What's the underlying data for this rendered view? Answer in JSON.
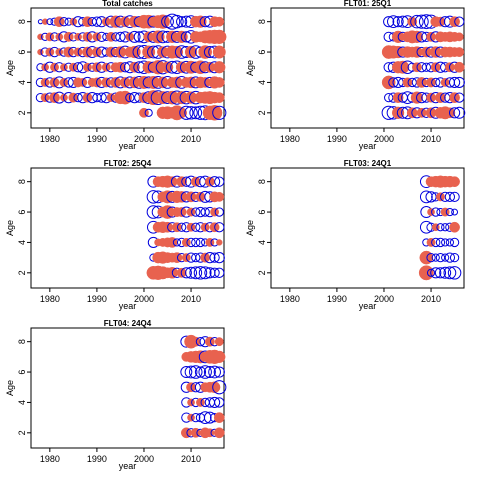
{
  "colors": {
    "negative": "#e8624f",
    "positive": "#0000dd",
    "frame": "#000000"
  },
  "chart_data": [
    {
      "type": "scatter",
      "subtype": "bubble-residuals",
      "title": "Total catches",
      "xlabel": "year",
      "ylabel": "Age",
      "xlim": [
        1976,
        2017
      ],
      "ylim": [
        1,
        8.9
      ],
      "xticks": [
        1980,
        1990,
        2000,
        2010
      ],
      "yticks": [
        2,
        4,
        6,
        8
      ],
      "x_range": [
        1978,
        2016
      ],
      "ages": [
        2,
        3,
        4,
        5,
        6,
        7,
        8
      ],
      "residuals": {
        "2": {
          "2000": -0.5,
          "2001": 0.3,
          "2004": -0.8,
          "2005": -0.9,
          "2006": -0.7,
          "2007": -1.2,
          "2008": -0.6,
          "2009": 1.0,
          "2010": 0.9,
          "2011": 0.8,
          "2012": 1.0,
          "2013": 1.1,
          "2014": -1.1,
          "2015": -1.3,
          "2016": 1.0
        },
        "3": {
          "1978": 0.4,
          "1979": -0.4,
          "1980": 0.5,
          "1981": -0.6,
          "1982": 0.7,
          "1983": -0.3,
          "1984": 0.6,
          "1985": -0.5,
          "1986": 0.4,
          "1987": 0.6,
          "1988": -0.5,
          "1989": 0.6,
          "1990": 0.4,
          "1991": 0.5,
          "1992": 0.6,
          "1993": -0.4,
          "1994": 0.5,
          "1995": -0.9,
          "1996": -1.0,
          "1997": 0.4,
          "1998": 0.6,
          "1999": 0.5,
          "2000": -0.6,
          "2001": 0.8,
          "2002": -1.2,
          "2003": 1.1,
          "2004": -0.9,
          "2005": 0.8,
          "2006": -1.0,
          "2007": 1.0,
          "2008": -0.9,
          "2009": 0.9,
          "2010": -0.8,
          "2011": 0.9,
          "2012": -0.7,
          "2013": -0.8,
          "2014": -0.9,
          "2015": -0.7,
          "2016": -0.6
        },
        "4": {
          "1978": 0.4,
          "1979": -0.4,
          "1980": 0.5,
          "1981": -0.5,
          "1982": 0.7,
          "1983": -0.4,
          "1984": 0.5,
          "1985": 0.6,
          "1986": -0.5,
          "1987": -0.4,
          "1988": 0.6,
          "1989": -0.4,
          "1990": -0.5,
          "1991": 0.6,
          "1992": -0.5,
          "1993": 0.5,
          "1994": -0.6,
          "1995": 0.7,
          "1996": -0.6,
          "1997": 0.7,
          "1998": -0.7,
          "1999": 0.8,
          "2000": -0.9,
          "2001": 0.7,
          "2002": -0.9,
          "2003": 0.8,
          "2004": -0.7,
          "2005": 0.8,
          "2006": -0.6,
          "2007": -0.7,
          "2008": 0.8,
          "2009": -0.6,
          "2010": -0.7,
          "2011": 0.7,
          "2012": -0.7,
          "2013": -0.6,
          "2014": 0.6,
          "2015": -0.8,
          "2016": -0.6
        },
        "5": {
          "1978": 0.3,
          "1979": -0.3,
          "1980": 0.6,
          "1981": -0.4,
          "1982": 0.5,
          "1983": -0.3,
          "1984": 0.4,
          "1985": -0.4,
          "1986": 0.5,
          "1987": 0.7,
          "1988": -0.4,
          "1989": 0.4,
          "1990": -0.5,
          "1991": 0.6,
          "1992": -0.4,
          "1993": 0.5,
          "1994": -0.5,
          "1995": -0.6,
          "1996": 0.5,
          "1997": 0.7,
          "1998": -0.6,
          "1999": 0.7,
          "2000": 0.9,
          "2001": -0.8,
          "2002": 0.6,
          "2003": -1.1,
          "2004": 1.0,
          "2005": -0.7,
          "2006": 0.8,
          "2007": 0.9,
          "2008": -0.7,
          "2009": 0.8,
          "2010": -0.9,
          "2011": 0.6,
          "2012": -1.0,
          "2013": 0.7,
          "2014": -0.6,
          "2015": 0.7,
          "2016": -0.8
        },
        "6": {
          "1978": -0.2,
          "1979": 0.4,
          "1980": -0.4,
          "1981": 0.5,
          "1982": -0.3,
          "1983": 0.4,
          "1984": -0.6,
          "1985": 0.5,
          "1986": -0.4,
          "1987": 0.5,
          "1988": -0.6,
          "1989": 0.7,
          "1990": -0.5,
          "1991": 0.6,
          "1992": 0.4,
          "1993": -0.6,
          "1994": 0.5,
          "1995": -0.7,
          "1996": 0.8,
          "1997": -0.6,
          "1998": -0.8,
          "1999": 0.9,
          "2000": 1.0,
          "2001": -0.9,
          "2002": 0.8,
          "2003": 0.9,
          "2004": -0.7,
          "2005": 0.8,
          "2006": -0.9,
          "2007": -0.8,
          "2008": 0.9,
          "2009": 0.7,
          "2010": -0.8,
          "2011": 0.9,
          "2012": 0.6,
          "2013": -1.0,
          "2014": 0.7,
          "2015": 0.8,
          "2016": -0.9
        },
        "7": {
          "1978": -0.2,
          "1979": 0.3,
          "1980": -0.4,
          "1981": 0.4,
          "1982": -0.3,
          "1983": 0.6,
          "1984": -0.5,
          "1985": 0.4,
          "1986": -0.3,
          "1987": 0.4,
          "1988": -0.5,
          "1989": 0.6,
          "1990": -0.4,
          "1991": 0.5,
          "1992": 0.3,
          "1993": -0.5,
          "1994": 0.4,
          "1995": 0.5,
          "1996": 0.6,
          "1997": -0.4,
          "1998": 0.7,
          "1999": 0.6,
          "2000": 0.8,
          "2001": -0.6,
          "2002": 0.7,
          "2003": -0.9,
          "2004": 0.8,
          "2005": 0.7,
          "2006": -0.8,
          "2007": 0.7,
          "2008": -0.8,
          "2009": 0.6,
          "2010": 0.9,
          "2011": -0.7,
          "2012": -0.6,
          "2013": -0.9,
          "2014": -1.0,
          "2015": -1.1,
          "2016": -1.1
        },
        "8": {
          "1978": 0.1,
          "1979": -0.2,
          "1980": 0.2,
          "1981": 0.3,
          "1982": -0.6,
          "1983": 0.4,
          "1984": 0.3,
          "1985": -0.3,
          "1986": 0.6,
          "1987": 0.4,
          "1988": -0.6,
          "1989": 0.4,
          "1990": 0.5,
          "1991": 0.6,
          "1992": -0.4,
          "1993": 0.7,
          "1994": -0.8,
          "1995": 0.7,
          "1996": -0.6,
          "1997": 0.8,
          "1998": -0.7,
          "1999": 0.6,
          "2000": -1.0,
          "2001": -1.0,
          "2002": 0.7,
          "2003": -0.9,
          "2004": -1.1,
          "2005": 0.8,
          "2006": 1.3,
          "2007": 0.9,
          "2008": 0.6,
          "2009": 0.7,
          "2010": 0.8,
          "2011": -0.7,
          "2012": -0.8,
          "2013": 0.6,
          "2014": 0.7,
          "2015": -0.6,
          "2016": -0.5
        }
      }
    },
    {
      "type": "scatter",
      "subtype": "bubble-residuals",
      "title": "FLT01: 25Q1",
      "xlabel": "year",
      "ylabel": "Age",
      "xlim": [
        1976,
        2017
      ],
      "ylim": [
        1,
        8.9
      ],
      "xticks": [
        1980,
        1990,
        2000,
        2010
      ],
      "yticks": [
        2,
        4,
        6,
        8
      ],
      "x_range": [
        2001,
        2016
      ],
      "ages": [
        2,
        3,
        4,
        5,
        6,
        7,
        8
      ],
      "residuals": {
        "2": {
          "2001": 1.0,
          "2002": 0.9,
          "2003": -0.8,
          "2004": 0.7,
          "2005": 0.8,
          "2006": -0.6,
          "2007": 0.6,
          "2008": -0.5,
          "2009": 0.5,
          "2010": -0.6,
          "2011": 0.7,
          "2012": -0.7,
          "2013": -0.9,
          "2014": -0.6,
          "2015": 0.6,
          "2016": 0.7
        },
        "3": {
          "2001": 0.4,
          "2002": 0.5,
          "2003": -0.6,
          "2004": 0.5,
          "2005": 0.8,
          "2006": 0.5,
          "2007": -0.8,
          "2008": 0.6,
          "2009": 0.5,
          "2010": -0.5,
          "2011": 0.6,
          "2012": -0.6,
          "2013": 0.5,
          "2014": 0.6,
          "2015": -0.6,
          "2016": 0.5
        },
        "4": {
          "2001": -1.0,
          "2002": 0.5,
          "2003": 0.6,
          "2004": 0.4,
          "2005": -0.5,
          "2006": 0.4,
          "2007": 0.5,
          "2008": -0.6,
          "2009": 0.4,
          "2010": -0.5,
          "2011": 0.4,
          "2012": 0.5,
          "2013": -0.4,
          "2014": 0.5,
          "2015": 0.6,
          "2016": 0.6
        },
        "5": {
          "2001": 0.5,
          "2002": 0.6,
          "2003": -0.8,
          "2004": -0.9,
          "2005": 0.9,
          "2006": 0.4,
          "2007": -0.5,
          "2008": 0.5,
          "2009": 0.4,
          "2010": 0.5,
          "2011": -0.5,
          "2012": 0.6,
          "2013": 0.5,
          "2014": -0.5,
          "2015": 0.6,
          "2016": -0.6
        },
        "6": {
          "2001": -1.0,
          "2002": -0.9,
          "2003": -0.8,
          "2004": 0.6,
          "2005": -0.7,
          "2006": -0.6,
          "2007": -0.7,
          "2008": 0.5,
          "2009": -0.6,
          "2010": 0.6,
          "2011": -0.7,
          "2012": 0.6,
          "2013": -0.6,
          "2014": -0.6,
          "2015": -0.5,
          "2016": -0.5
        },
        "7": {
          "2001": 0.5,
          "2002": 0.4,
          "2003": -0.8,
          "2004": 0.5,
          "2005": -0.6,
          "2006": -0.9,
          "2007": -0.8,
          "2008": 0.6,
          "2009": 0.5,
          "2010": -0.5,
          "2011": 0.6,
          "2012": -0.6,
          "2013": -0.5,
          "2014": -0.6,
          "2015": -0.5,
          "2016": -0.4
        },
        "8": {
          "2001": 0.6,
          "2002": 0.8,
          "2003": 0.6,
          "2004": 0.7,
          "2005": 0.8,
          "2006": -0.5,
          "2007": 0.9,
          "2008": 1.0,
          "2009": 1.1,
          "2010": 1.0,
          "2011": -0.6,
          "2012": -0.5,
          "2013": 0.6,
          "2014": 0.7,
          "2015": -0.6,
          "2016": 0.5
        }
      }
    },
    {
      "type": "scatter",
      "subtype": "bubble-residuals",
      "title": "FLT02: 25Q4",
      "xlabel": "year",
      "ylabel": "Age",
      "xlim": [
        1976,
        2017
      ],
      "ylim": [
        1,
        8.9
      ],
      "xticks": [
        1980,
        1990,
        2000,
        2010
      ],
      "yticks": [
        2,
        4,
        6,
        8
      ],
      "x_range": [
        2002,
        2016
      ],
      "ages": [
        2,
        3,
        4,
        5,
        6,
        7,
        8
      ],
      "residuals": {
        "2": {
          "2002": -1.0,
          "2003": -1.1,
          "2004": -0.9,
          "2005": -0.6,
          "2006": -0.7,
          "2007": 0.5,
          "2008": -0.5,
          "2009": 0.6,
          "2010": 0.7,
          "2011": 0.8,
          "2012": 0.9,
          "2013": 0.8,
          "2014": 0.6,
          "2015": 0.5,
          "2016": 0.5
        },
        "3": {
          "2002": 0.3,
          "2003": -0.7,
          "2004": -0.8,
          "2005": -0.6,
          "2006": -0.5,
          "2007": -0.6,
          "2008": 0.4,
          "2009": -0.4,
          "2010": 0.5,
          "2011": 0.4,
          "2012": 0.5,
          "2013": -0.5,
          "2014": 0.6,
          "2015": 0.5,
          "2016": 0.6
        },
        "4": {
          "2002": 0.6,
          "2003": -0.3,
          "2004": -0.4,
          "2005": -0.5,
          "2006": -0.6,
          "2007": 0.3,
          "2008": 0.4,
          "2009": -0.4,
          "2010": 0.4,
          "2011": 0.4,
          "2012": 0.4,
          "2013": 0.3,
          "2014": -0.4,
          "2015": 0.3,
          "2016": -0.2
        },
        "5": {
          "2002": 0.8,
          "2003": -0.6,
          "2004": -0.7,
          "2005": -0.6,
          "2006": 0.5,
          "2007": -0.5,
          "2008": 0.4,
          "2009": 0.5,
          "2010": -0.4,
          "2011": 0.4,
          "2012": 0.5,
          "2013": -0.4,
          "2014": 0.5,
          "2015": -0.5,
          "2016": 0.5
        },
        "6": {
          "2002": 0.9,
          "2003": 0.8,
          "2004": -0.6,
          "2005": -1.0,
          "2006": 0.6,
          "2007": -0.5,
          "2008": -0.5,
          "2009": 0.6,
          "2010": -0.4,
          "2011": 0.4,
          "2012": 0.5,
          "2013": 0.4,
          "2014": 0.5,
          "2015": -0.4,
          "2016": 0.4
        },
        "7": {
          "2002": 0.9,
          "2003": 0.8,
          "2004": -0.6,
          "2005": -0.9,
          "2006": 0.7,
          "2007": -0.8,
          "2008": -0.7,
          "2009": 0.6,
          "2010": -0.6,
          "2011": 0.5,
          "2012": -0.5,
          "2013": 0.7,
          "2014": 0.6,
          "2015": -0.6,
          "2016": -0.5
        },
        "8": {
          "2002": 0.7,
          "2003": -0.6,
          "2004": -0.7,
          "2005": -0.8,
          "2006": -0.6,
          "2007": 0.7,
          "2008": -0.6,
          "2009": 0.5,
          "2010": 0.7,
          "2011": -0.5,
          "2012": 0.6,
          "2013": 0.7,
          "2014": -0.5,
          "2015": 0.6,
          "2016": 0.5
        }
      }
    },
    {
      "type": "scatter",
      "subtype": "bubble-residuals",
      "title": "FLT03: 24Q1",
      "xlabel": "year",
      "ylabel": "Age",
      "xlim": [
        1976,
        2017
      ],
      "ylim": [
        1,
        8.9
      ],
      "xticks": [
        1980,
        1990,
        2000,
        2010
      ],
      "yticks": [
        2,
        4,
        6,
        8
      ],
      "x_range": [
        2009,
        2015
      ],
      "ages": [
        2,
        3,
        4,
        5,
        6,
        7,
        8
      ],
      "residuals": {
        "2": {
          "2009": -1.2,
          "2010": 0.3,
          "2011": 0.6,
          "2012": 0.6,
          "2013": 0.7,
          "2014": 0.8,
          "2015": 0.9
        },
        "3": {
          "2009": -1.0,
          "2010": 0.4,
          "2011": 0.3,
          "2012": 0.4,
          "2013": 0.3,
          "2014": 0.5,
          "2015": 0.4
        },
        "4": {
          "2009": 0.3,
          "2010": -0.4,
          "2011": 0.4,
          "2012": 0.4,
          "2013": 0.3,
          "2014": 0.3,
          "2015": 0.4
        },
        "5": {
          "2009": 0.8,
          "2010": 0.4,
          "2011": -0.3,
          "2012": 0.3,
          "2013": 0.3,
          "2014": 0.4,
          "2015": -0.6
        },
        "6": {
          "2009": 0.7,
          "2010": -0.3,
          "2011": 0.4,
          "2012": 0.3,
          "2013": -0.4,
          "2014": 0.3,
          "2015": 0.2
        },
        "7": {
          "2009": 0.8,
          "2010": 0.6,
          "2011": 0.4,
          "2012": -0.4,
          "2013": 0.5,
          "2014": 0.5,
          "2015": 0.5
        },
        "8": {
          "2009": 0.8,
          "2010": -0.6,
          "2011": -0.7,
          "2012": -0.8,
          "2013": -0.7,
          "2014": -0.7,
          "2015": -0.6
        }
      }
    },
    {
      "type": "scatter",
      "subtype": "bubble-residuals",
      "title": "FLT04: 24Q4",
      "xlabel": "year",
      "ylabel": "Age",
      "xlim": [
        1976,
        2017
      ],
      "ylim": [
        1,
        8.9
      ],
      "xticks": [
        1980,
        1990,
        2000,
        2010
      ],
      "yticks": [
        2,
        4,
        6,
        8
      ],
      "x_range": [
        2009,
        2016
      ],
      "ages": [
        2,
        3,
        4,
        5,
        6,
        7,
        8
      ],
      "residuals": {
        "2": {
          "2009": -0.6,
          "2010": 0.4,
          "2011": -0.5,
          "2012": 0.3,
          "2013": -0.6,
          "2014": -0.4,
          "2015": 0.3,
          "2016": -0.6
        },
        "3": {
          "2009": 0.5,
          "2010": -0.3,
          "2011": 0.4,
          "2012": 0.4,
          "2013": 0.8,
          "2014": 0.7,
          "2015": 0.4,
          "2016": -0.6
        },
        "4": {
          "2009": 0.5,
          "2010": -0.3,
          "2011": 0.4,
          "2012": -0.4,
          "2013": 0.4,
          "2014": 0.5,
          "2015": 0.6,
          "2016": 0.5
        },
        "5": {
          "2009": 0.6,
          "2010": -0.5,
          "2011": 0.5,
          "2012": 0.6,
          "2013": -0.5,
          "2014": -0.6,
          "2015": -0.7,
          "2016": 1.0
        },
        "6": {
          "2009": 0.7,
          "2010": 0.8,
          "2011": 0.9,
          "2012": 0.6,
          "2013": 0.9,
          "2014": 0.7,
          "2015": 0.8,
          "2016": 0.6
        },
        "7": {
          "2009": -0.5,
          "2010": -0.7,
          "2011": -0.8,
          "2012": -0.9,
          "2013": 0.8,
          "2014": -1.0,
          "2015": -1.1,
          "2016": -0.8
        },
        "8": {
          "2009": 0.7,
          "2010": -1.0,
          "2011": -0.5,
          "2012": 0.4,
          "2013": 0.6,
          "2014": -0.5,
          "2015": 0.4,
          "2016": -0.4
        }
      }
    }
  ]
}
